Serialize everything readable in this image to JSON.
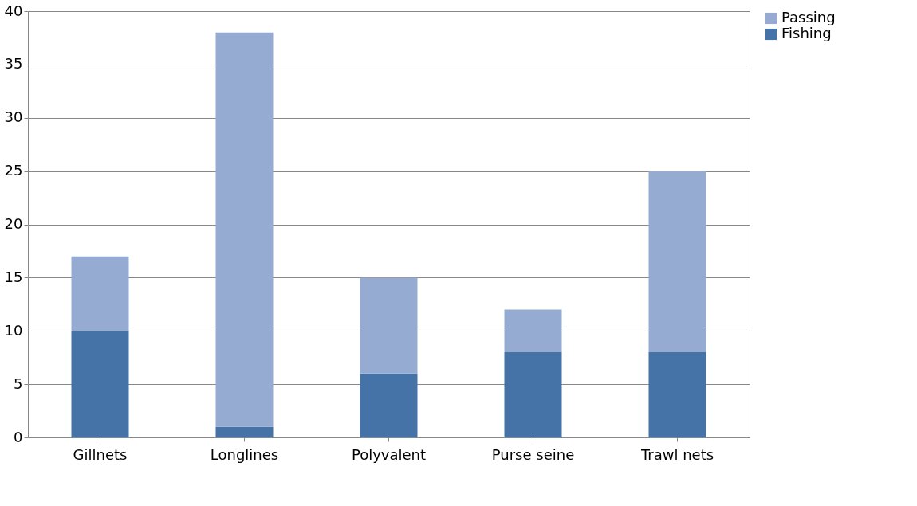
{
  "chart_data": {
    "type": "bar",
    "stacked": true,
    "categories": [
      "Gillnets",
      "Longlines",
      "Polyvalent",
      "Purse seine",
      "Trawl nets"
    ],
    "series": [
      {
        "name": "Fishing",
        "color": "#4573a8",
        "values": [
          10,
          1,
          6,
          8,
          8
        ]
      },
      {
        "name": "Passing",
        "color": "#95abd2",
        "values": [
          7,
          37,
          9,
          4,
          17
        ]
      }
    ],
    "ylim": [
      0,
      40
    ],
    "yticks": [
      0,
      5,
      10,
      15,
      20,
      25,
      30,
      35,
      40
    ],
    "grid": "y",
    "legend": "right"
  }
}
